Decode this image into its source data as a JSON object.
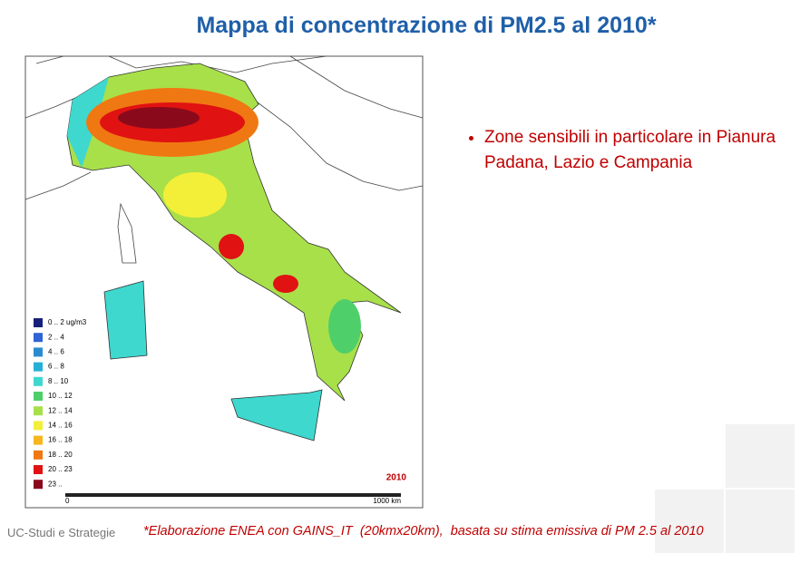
{
  "title": "Mappa di concentrazione di PM2.5 al 2010*",
  "map": {
    "legend": [
      {
        "label": "0 .. 2 ug/m3",
        "color": "#16207a"
      },
      {
        "label": "2 .. 4",
        "color": "#2f63d6"
      },
      {
        "label": "4 .. 6",
        "color": "#2a8cd0"
      },
      {
        "label": "6 .. 8",
        "color": "#27b0d6"
      },
      {
        "label": "8 .. 10",
        "color": "#3ed8cf"
      },
      {
        "label": "10 .. 12",
        "color": "#4fcf6a"
      },
      {
        "label": "12 .. 14",
        "color": "#a8e04a"
      },
      {
        "label": "14 .. 16",
        "color": "#f3ef38"
      },
      {
        "label": "16 .. 18",
        "color": "#f5b61f"
      },
      {
        "label": "18 .. 20",
        "color": "#f07812"
      },
      {
        "label": "20 .. 23",
        "color": "#e01212"
      },
      {
        "label": "23 ..",
        "color": "#8a0a1c"
      }
    ],
    "year": "2010",
    "scale_start": "0",
    "scale_end": "1000 km"
  },
  "bullets": [
    "Zone sensibili in particolare in Pianura Padana, Lazio e Campania"
  ],
  "footer": {
    "left": "UC-Studi e Strategie",
    "note": "*Elaborazione ENEA con GAINS_IT  (20kmx20km),  basata su stima emissiva di PM 2.5 al 2010"
  }
}
